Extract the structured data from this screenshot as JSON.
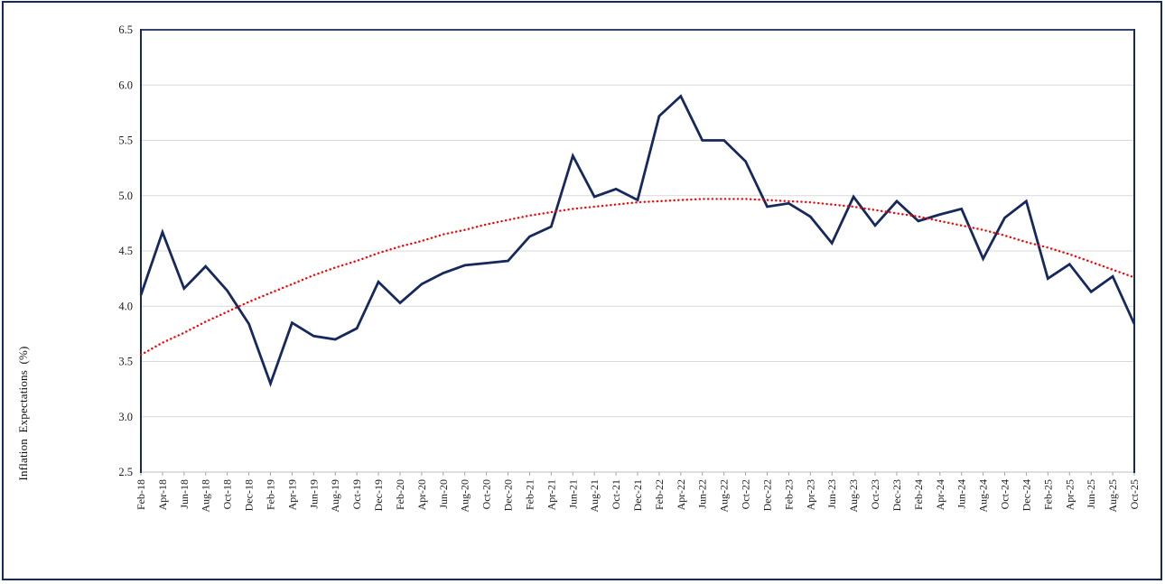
{
  "colors": {
    "series": "#16295e",
    "trend": "#fe0000",
    "grid": "#d9d9d9",
    "plot_border": "#16295e",
    "bottom_axis": "#bfbfbf",
    "tick": "#a6a6a6",
    "text": "#1a1a1a",
    "frame": "#16295e",
    "background": "#ffffff"
  },
  "chart_data": {
    "type": "line",
    "title": "",
    "xlabel": "",
    "ylabel": "Inflation Expectations (%)",
    "ylim": [
      2.5,
      6.5
    ],
    "ytick_step": 0.5,
    "ytick_decimals": 1,
    "grid": true,
    "legend": "none",
    "categories": [
      "Feb-18",
      "Apr-18",
      "Jun-18",
      "Aug-18",
      "Oct-18",
      "Dec-18",
      "Feb-19",
      "Apr-19",
      "Jun-19",
      "Aug-19",
      "Oct-19",
      "Dec-19",
      "Feb-20",
      "Apr-20",
      "Jun-20",
      "Aug-20",
      "Oct-20",
      "Dec-20",
      "Feb-21",
      "Apr-21",
      "Jun-21",
      "Aug-21",
      "Oct-21",
      "Dec-21",
      "Feb-22",
      "Apr-22",
      "Jun-22",
      "Aug-22",
      "Oct-22",
      "Dec-22",
      "Feb-23",
      "Apr-23",
      "Jun-23",
      "Aug-23",
      "Oct-23",
      "Dec-23",
      "Feb-24",
      "Apr-24",
      "Jun-24",
      "Aug-24",
      "Oct-24",
      "Dec-24",
      "Feb-25",
      "Apr-25",
      "Jun-25",
      "Aug-25",
      "Oct-25"
    ],
    "series": [
      {
        "id": "inflation-expectations",
        "style": "solid",
        "color": "#16295e",
        "values": [
          4.1,
          4.67,
          4.16,
          4.36,
          4.14,
          3.84,
          3.3,
          3.85,
          3.73,
          3.7,
          3.8,
          4.22,
          4.03,
          4.2,
          4.3,
          4.37,
          4.39,
          4.41,
          4.63,
          4.72,
          5.36,
          4.99,
          5.06,
          4.96,
          5.72,
          5.9,
          5.5,
          5.5,
          5.31,
          4.9,
          4.93,
          4.81,
          4.57,
          4.99,
          4.73,
          4.95,
          4.77,
          4.83,
          4.88,
          4.43,
          4.8,
          4.95,
          4.25,
          4.38,
          4.13,
          4.27,
          3.84
        ]
      },
      {
        "id": "polynomial-trend",
        "style": "dotted",
        "color": "#fe0000",
        "values": [
          3.56,
          3.67,
          3.76,
          3.86,
          3.95,
          4.04,
          4.12,
          4.2,
          4.28,
          4.35,
          4.41,
          4.48,
          4.54,
          4.59,
          4.65,
          4.69,
          4.74,
          4.78,
          4.82,
          4.85,
          4.88,
          4.9,
          4.92,
          4.94,
          4.95,
          4.96,
          4.97,
          4.97,
          4.97,
          4.96,
          4.95,
          4.94,
          4.92,
          4.9,
          4.87,
          4.84,
          4.81,
          4.77,
          4.73,
          4.69,
          4.64,
          4.58,
          4.53,
          4.47,
          4.4,
          4.33,
          4.26
        ]
      }
    ]
  }
}
